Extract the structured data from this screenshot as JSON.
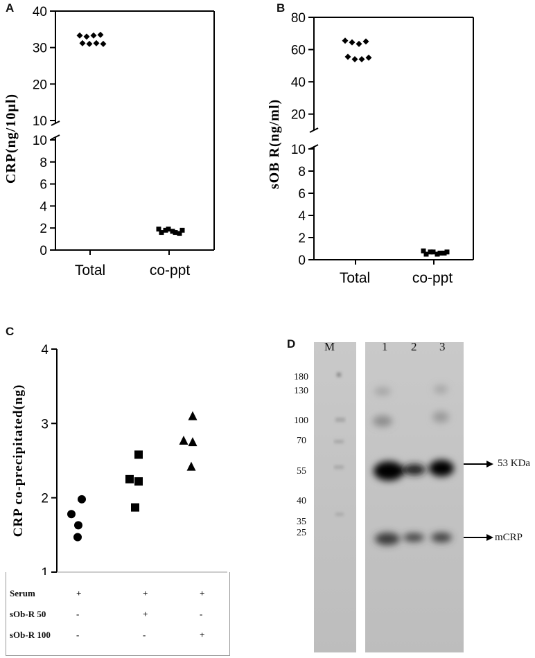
{
  "panels": {
    "A": {
      "label": "A"
    },
    "B": {
      "label": "B"
    },
    "C": {
      "label": "C"
    },
    "D": {
      "label": "D"
    }
  },
  "chart_data": [
    {
      "id": "A",
      "type": "scatter",
      "ylabel": "CRP(ng/10µl)",
      "categories": [
        "Total",
        "co-ppt"
      ],
      "y_axis": {
        "broken": true,
        "lower_ticks": [
          "0",
          "2",
          "4",
          "6",
          "8",
          "10"
        ],
        "upper_ticks": [
          "10",
          "20",
          "30",
          "40"
        ]
      },
      "series": [
        {
          "category": "Total",
          "values": [
            33.3,
            33.0,
            33.3,
            33.5,
            31.2,
            31.0,
            31.2,
            31.0
          ]
        },
        {
          "category": "co-ppt",
          "values": [
            1.9,
            1.8,
            1.7,
            1.5,
            1.6,
            1.9,
            1.6,
            1.8
          ]
        }
      ]
    },
    {
      "id": "B",
      "type": "scatter",
      "ylabel": "sOB R(ng/ml)",
      "categories": [
        "Total",
        "co-ppt"
      ],
      "y_axis": {
        "broken": true,
        "lower_ticks": [
          "0",
          "2",
          "4",
          "6",
          "8",
          "10"
        ],
        "upper_ticks": [
          "20",
          "40",
          "60",
          "80"
        ]
      },
      "series": [
        {
          "category": "Total",
          "values": [
            65.5,
            64.5,
            63.5,
            65.0,
            55.5,
            54.0,
            54.0,
            55.0
          ]
        },
        {
          "category": "co-ppt",
          "values": [
            0.8,
            0.7,
            0.5,
            0.6,
            0.5,
            0.7,
            0.6,
            0.7
          ]
        }
      ]
    },
    {
      "id": "C",
      "type": "scatter",
      "ylabel": "CRP co-precipitated(ng)",
      "ylim": [
        1,
        4
      ],
      "yticks": [
        "1",
        "2",
        "3",
        "4"
      ],
      "groups": [
        {
          "marker": "circle",
          "points": [
            [
              -0.1,
              1.78
            ],
            [
              0.05,
              1.98
            ],
            [
              0.0,
              1.63
            ],
            [
              -0.01,
              1.47
            ]
          ]
        },
        {
          "marker": "square",
          "points": [
            [
              -0.08,
              2.25
            ],
            [
              0.05,
              2.58
            ],
            [
              0.05,
              2.22
            ],
            [
              0.0,
              1.87
            ]
          ]
        },
        {
          "marker": "triangle",
          "points": [
            [
              0.0,
              3.1
            ],
            [
              -0.13,
              2.77
            ],
            [
              0.0,
              2.75
            ],
            [
              -0.02,
              2.42
            ]
          ]
        }
      ]
    }
  ],
  "conditions": {
    "rows": [
      {
        "label": "Serum",
        "values": [
          "+",
          "+",
          "+"
        ]
      },
      {
        "label": "sOb-R 50",
        "values": [
          "-",
          "+",
          "-"
        ]
      },
      {
        "label": "sOb-R 100",
        "values": [
          "-",
          "-",
          "+"
        ]
      }
    ]
  },
  "blot": {
    "lanes": [
      "M",
      "1",
      "2",
      "3"
    ],
    "markers": [
      "180",
      "130",
      "100",
      "70",
      "55",
      "40",
      "35",
      "25"
    ],
    "annotations": [
      "53 KDa",
      "mCRP"
    ]
  }
}
